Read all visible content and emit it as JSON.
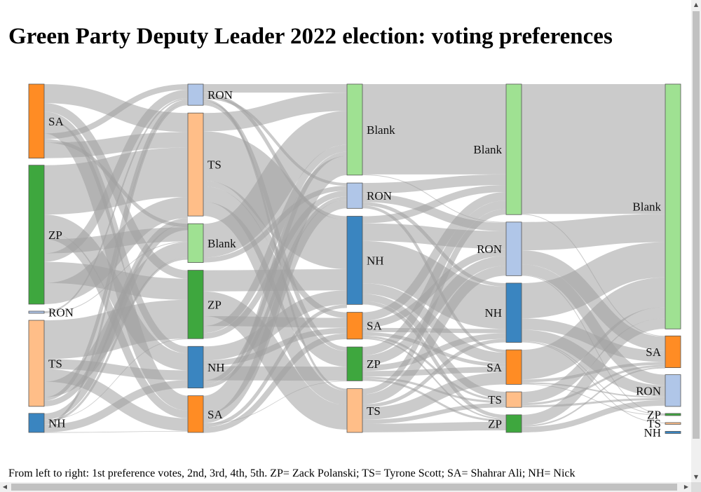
{
  "title": "Green Party Deputy Leader 2022 election: voting preferences",
  "caption": "From left to right: 1st preference votes, 2nd, 3rd, 4th, 5th. ZP= Zack Polanski; TS= Tyrone Scott; SA= Shahrar Ali; NH= Nick",
  "colors": {
    "SA": "#ff8c24",
    "ZP": "#3ea73e",
    "RON": "#b0c6e8",
    "TS": "#ffbe88",
    "NH": "#3a85c0",
    "Blank": "#9fe192",
    "link": "#a0a0a0"
  },
  "scrollbars": {
    "up": "▲",
    "down": "▼",
    "left": "◀",
    "right": "▶"
  },
  "chart_data": {
    "type": "sankey",
    "stages": [
      "1st preference",
      "2nd",
      "3rd",
      "4th",
      "5th"
    ],
    "nodes": [
      [
        {
          "label": "SA",
          "value": 105
        },
        {
          "label": "ZP",
          "value": 197
        },
        {
          "label": "RON",
          "value": 3
        },
        {
          "label": "TS",
          "value": 122
        },
        {
          "label": "NH",
          "value": 27
        }
      ],
      [
        {
          "label": "RON",
          "value": 30
        },
        {
          "label": "TS",
          "value": 146
        },
        {
          "label": "Blank",
          "value": 55
        },
        {
          "label": "ZP",
          "value": 97
        },
        {
          "label": "NH",
          "value": 59
        },
        {
          "label": "SA",
          "value": 52
        }
      ],
      [
        {
          "label": "Blank",
          "value": 129
        },
        {
          "label": "RON",
          "value": 36
        },
        {
          "label": "NH",
          "value": 125
        },
        {
          "label": "SA",
          "value": 38
        },
        {
          "label": "ZP",
          "value": 48
        },
        {
          "label": "TS",
          "value": 62
        }
      ],
      [
        {
          "label": "Blank",
          "value": 185
        },
        {
          "label": "RON",
          "value": 76
        },
        {
          "label": "NH",
          "value": 84
        },
        {
          "label": "SA",
          "value": 49
        },
        {
          "label": "TS",
          "value": 22
        },
        {
          "label": "ZP",
          "value": 25
        }
      ],
      [
        {
          "label": "Blank",
          "value": 347
        },
        {
          "label": "SA",
          "value": 45
        },
        {
          "label": "RON",
          "value": 45
        },
        {
          "label": "ZP",
          "value": 3
        },
        {
          "label": "TS",
          "value": 1
        },
        {
          "label": "NH",
          "value": 3
        }
      ]
    ],
    "links": [
      [
        [
          0,
          1,
          27
        ],
        [
          0,
          3,
          12
        ],
        [
          0,
          4,
          10
        ],
        [
          0,
          5,
          21
        ],
        [
          0,
          0,
          8
        ],
        [
          0,
          2,
          5
        ],
        [
          0,
          1,
          22
        ],
        [
          1,
          1,
          70
        ],
        [
          1,
          4,
          24
        ],
        [
          1,
          5,
          11
        ],
        [
          1,
          2,
          20
        ],
        [
          1,
          0,
          12
        ],
        [
          1,
          3,
          30
        ],
        [
          1,
          1,
          30
        ],
        [
          2,
          0,
          2
        ],
        [
          2,
          2,
          1
        ],
        [
          3,
          3,
          55
        ],
        [
          3,
          4,
          14
        ],
        [
          3,
          5,
          18
        ],
        [
          3,
          2,
          22
        ],
        [
          3,
          0,
          5
        ],
        [
          3,
          1,
          8
        ],
        [
          4,
          1,
          9
        ],
        [
          4,
          3,
          0.5
        ],
        [
          4,
          2,
          3
        ],
        [
          4,
          0,
          3
        ],
        [
          4,
          4,
          11
        ],
        [
          4,
          5,
          0.5
        ]
      ],
      [
        [
          0,
          0,
          12
        ],
        [
          0,
          2,
          5
        ],
        [
          0,
          1,
          4
        ],
        [
          0,
          5,
          3
        ],
        [
          0,
          4,
          6
        ],
        [
          1,
          0,
          26
        ],
        [
          1,
          2,
          70
        ],
        [
          1,
          3,
          8
        ],
        [
          1,
          4,
          22
        ],
        [
          1,
          5,
          20
        ],
        [
          2,
          0,
          48
        ],
        [
          2,
          1,
          7
        ],
        [
          3,
          2,
          30
        ],
        [
          3,
          5,
          35
        ],
        [
          3,
          3,
          14
        ],
        [
          3,
          0,
          10
        ],
        [
          3,
          1,
          8
        ],
        [
          4,
          2,
          20
        ],
        [
          4,
          3,
          8
        ],
        [
          4,
          4,
          20
        ],
        [
          4,
          0,
          6
        ],
        [
          4,
          1,
          5
        ],
        [
          5,
          0,
          27
        ],
        [
          5,
          1,
          12
        ],
        [
          5,
          4,
          0.5
        ],
        [
          5,
          2,
          5
        ],
        [
          5,
          3,
          8
        ]
      ],
      [
        [
          0,
          0,
          128
        ],
        [
          0,
          1,
          1
        ],
        [
          1,
          0,
          15
        ],
        [
          1,
          1,
          12
        ],
        [
          1,
          2,
          5
        ],
        [
          1,
          3,
          4
        ],
        [
          2,
          0,
          10
        ],
        [
          2,
          1,
          25
        ],
        [
          2,
          2,
          60
        ],
        [
          2,
          3,
          15
        ],
        [
          2,
          4,
          10
        ],
        [
          2,
          5,
          5
        ],
        [
          3,
          0,
          12
        ],
        [
          3,
          1,
          10
        ],
        [
          3,
          2,
          6
        ],
        [
          3,
          3,
          5
        ],
        [
          3,
          4,
          3
        ],
        [
          3,
          5,
          2
        ],
        [
          4,
          0,
          12
        ],
        [
          4,
          1,
          14
        ],
        [
          4,
          2,
          8
        ],
        [
          4,
          3,
          8
        ],
        [
          4,
          4,
          3
        ],
        [
          4,
          5,
          3
        ],
        [
          5,
          0,
          8
        ],
        [
          5,
          1,
          14
        ],
        [
          5,
          2,
          5
        ],
        [
          5,
          3,
          17
        ],
        [
          5,
          4,
          6
        ],
        [
          5,
          5,
          12
        ]
      ],
      [
        [
          0,
          0,
          184
        ],
        [
          0,
          1,
          1
        ],
        [
          1,
          0,
          40
        ],
        [
          1,
          1,
          20
        ],
        [
          1,
          2,
          15
        ],
        [
          1,
          3,
          1
        ],
        [
          2,
          0,
          50
        ],
        [
          2,
          1,
          16
        ],
        [
          2,
          2,
          16
        ],
        [
          2,
          3,
          1
        ],
        [
          2,
          4,
          1
        ],
        [
          3,
          0,
          42
        ],
        [
          3,
          1,
          4
        ],
        [
          3,
          2,
          2
        ],
        [
          3,
          3,
          1
        ],
        [
          4,
          0,
          16
        ],
        [
          4,
          1,
          3
        ],
        [
          4,
          2,
          3
        ],
        [
          5,
          0,
          15
        ],
        [
          5,
          1,
          2
        ],
        [
          5,
          2,
          8
        ]
      ]
    ]
  }
}
